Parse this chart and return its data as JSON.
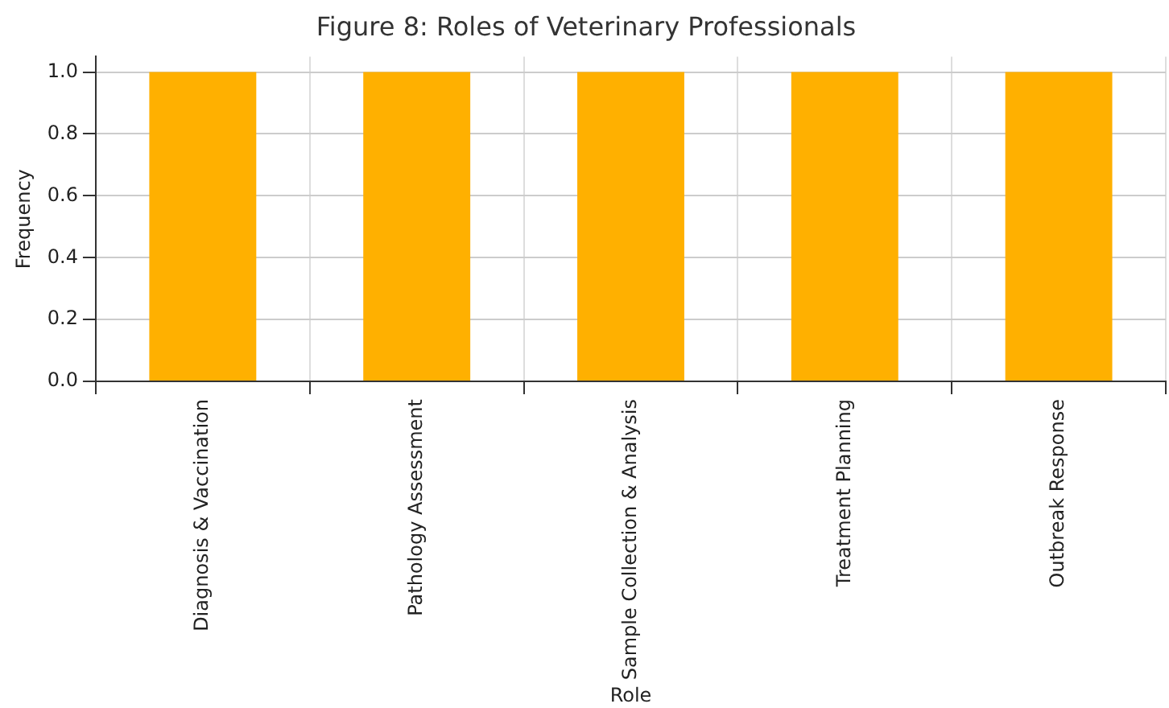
{
  "chart_data": {
    "type": "bar",
    "title": "Figure 8: Roles of Veterinary Professionals",
    "xlabel": "Role",
    "ylabel": "Frequency",
    "categories": [
      "Diagnosis & Vaccination",
      "Pathology Assessment",
      "Sample Collection & Analysis",
      "Treatment Planning",
      "Outbreak Response"
    ],
    "values": [
      1,
      1,
      1,
      1,
      1
    ],
    "color": "#ffb000",
    "ylim": [
      0,
      1.05
    ],
    "yticks": [
      {
        "value": 0,
        "label": "0.0"
      },
      0.2,
      0.4,
      0.6,
      0.8,
      {
        "value": 1,
        "label": "1.0"
      }
    ],
    "grid": true
  }
}
